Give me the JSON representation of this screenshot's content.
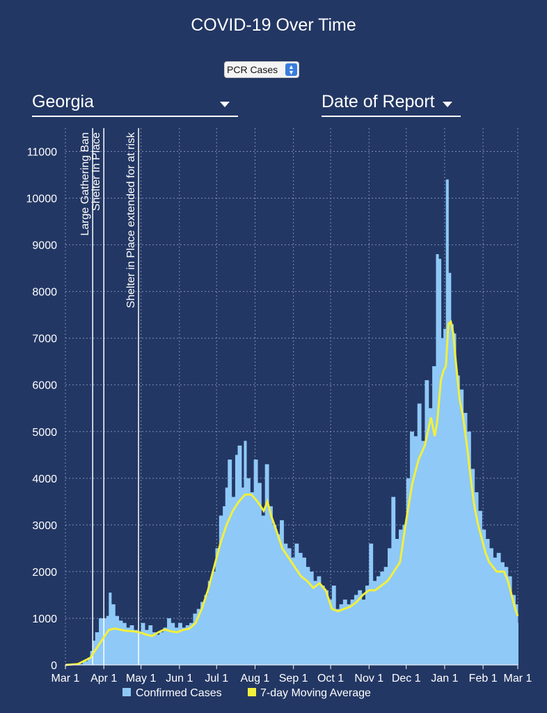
{
  "title": "COVID-19 Over Time",
  "metric_select": {
    "value": "PCR Cases"
  },
  "state_dropdown": {
    "value": "Georgia"
  },
  "date_dropdown": {
    "value": "Date of Report"
  },
  "colors": {
    "background": "#233764",
    "bars": "#8fc9f7",
    "moving_average": "#f2f03c",
    "annotation_line": "#ffffff"
  },
  "icons": {
    "metric_select": "up-down-arrows-icon",
    "dropdown": "caret-down-icon"
  },
  "chart_data": {
    "type": "bar",
    "title": "COVID-19 Over Time",
    "xlabel": "",
    "ylabel": "",
    "ylim": [
      0,
      11500
    ],
    "yticks": [
      0,
      1000,
      2000,
      3000,
      4000,
      5000,
      6000,
      7000,
      8000,
      9000,
      10000,
      11000
    ],
    "grid": true,
    "legend_position": "bottom",
    "x_ticks": [
      {
        "label": "Mar 1",
        "day": 0
      },
      {
        "label": "Apr 1",
        "day": 31
      },
      {
        "label": "May 1",
        "day": 61
      },
      {
        "label": "Jun 1",
        "day": 92
      },
      {
        "label": "Jul 1",
        "day": 122
      },
      {
        "label": "Aug 1",
        "day": 153
      },
      {
        "label": "Sep 1",
        "day": 184
      },
      {
        "label": "Oct 1",
        "day": 214
      },
      {
        "label": "Nov 1",
        "day": 245
      },
      {
        "label": "Dec 1",
        "day": 275
      },
      {
        "label": "Jan 1",
        "day": 306
      },
      {
        "label": "Feb 1",
        "day": 337
      },
      {
        "label": "Mar 1",
        "day": 365
      }
    ],
    "annotations": [
      {
        "label": "Large Gathering Ban",
        "day": 22
      },
      {
        "label": "Shelter In Place",
        "day": 31
      },
      {
        "label": "Shelter in Place extended for at risk",
        "day": 59
      }
    ],
    "series": [
      {
        "name": "Confirmed Cases",
        "type": "bar",
        "points": [
          [
            2,
            5
          ],
          [
            8,
            20
          ],
          [
            14,
            80
          ],
          [
            18,
            160
          ],
          [
            20,
            300
          ],
          [
            22,
            520
          ],
          [
            24,
            700
          ],
          [
            27,
            1000
          ],
          [
            30,
            1000
          ],
          [
            33,
            1050
          ],
          [
            35,
            1550
          ],
          [
            37,
            1300
          ],
          [
            40,
            1050
          ],
          [
            43,
            950
          ],
          [
            46,
            900
          ],
          [
            49,
            800
          ],
          [
            52,
            850
          ],
          [
            55,
            750
          ],
          [
            58,
            700
          ],
          [
            61,
            900
          ],
          [
            64,
            750
          ],
          [
            67,
            850
          ],
          [
            70,
            700
          ],
          [
            73,
            650
          ],
          [
            76,
            700
          ],
          [
            79,
            800
          ],
          [
            82,
            1000
          ],
          [
            85,
            900
          ],
          [
            88,
            800
          ],
          [
            91,
            900
          ],
          [
            94,
            800
          ],
          [
            97,
            850
          ],
          [
            100,
            900
          ],
          [
            103,
            1100
          ],
          [
            106,
            1200
          ],
          [
            109,
            1350
          ],
          [
            112,
            1500
          ],
          [
            115,
            1800
          ],
          [
            118,
            2000
          ],
          [
            121,
            2500
          ],
          [
            124,
            3200
          ],
          [
            127,
            3400
          ],
          [
            129,
            3800
          ],
          [
            131,
            4400
          ],
          [
            134,
            3600
          ],
          [
            137,
            4500
          ],
          [
            139,
            4700
          ],
          [
            142,
            3800
          ],
          [
            144,
            4800
          ],
          [
            146,
            4000
          ],
          [
            149,
            3700
          ],
          [
            152,
            4400
          ],
          [
            155,
            3900
          ],
          [
            158,
            3200
          ],
          [
            161,
            4300
          ],
          [
            164,
            3400
          ],
          [
            167,
            3000
          ],
          [
            170,
            2800
          ],
          [
            173,
            3100
          ],
          [
            176,
            2600
          ],
          [
            179,
            2500
          ],
          [
            182,
            2300
          ],
          [
            185,
            2600
          ],
          [
            188,
            2400
          ],
          [
            191,
            2300
          ],
          [
            194,
            2100
          ],
          [
            197,
            2000
          ],
          [
            200,
            1800
          ],
          [
            203,
            1900
          ],
          [
            206,
            1700
          ],
          [
            209,
            1600
          ],
          [
            212,
            1400
          ],
          [
            215,
            1700
          ],
          [
            218,
            1200
          ],
          [
            221,
            1300
          ],
          [
            224,
            1400
          ],
          [
            227,
            1300
          ],
          [
            230,
            1400
          ],
          [
            233,
            1500
          ],
          [
            236,
            1600
          ],
          [
            239,
            1400
          ],
          [
            242,
            1700
          ],
          [
            245,
            2600
          ],
          [
            248,
            1800
          ],
          [
            251,
            1900
          ],
          [
            254,
            2000
          ],
          [
            257,
            2100
          ],
          [
            260,
            2500
          ],
          [
            263,
            3600
          ],
          [
            266,
            2700
          ],
          [
            269,
            2900
          ],
          [
            272,
            3000
          ],
          [
            275,
            4000
          ],
          [
            278,
            5000
          ],
          [
            281,
            4900
          ],
          [
            284,
            5600
          ],
          [
            287,
            4800
          ],
          [
            290,
            6100
          ],
          [
            293,
            5500
          ],
          [
            296,
            6400
          ],
          [
            299,
            8800
          ],
          [
            301,
            8700
          ],
          [
            303,
            7000
          ],
          [
            305,
            7200
          ],
          [
            307,
            10400
          ],
          [
            309,
            8400
          ],
          [
            311,
            7300
          ],
          [
            313,
            7100
          ],
          [
            315,
            6200
          ],
          [
            318,
            5900
          ],
          [
            321,
            5400
          ],
          [
            324,
            5000
          ],
          [
            327,
            4200
          ],
          [
            330,
            3700
          ],
          [
            333,
            3300
          ],
          [
            336,
            2900
          ],
          [
            339,
            2700
          ],
          [
            342,
            2500
          ],
          [
            345,
            2300
          ],
          [
            348,
            2400
          ],
          [
            351,
            2200
          ],
          [
            354,
            2100
          ],
          [
            357,
            1900
          ],
          [
            360,
            1500
          ],
          [
            363,
            1300
          ],
          [
            365,
            900
          ]
        ]
      },
      {
        "name": "7-day Moving Average",
        "type": "line",
        "points": [
          [
            0,
            0
          ],
          [
            10,
            20
          ],
          [
            20,
            150
          ],
          [
            25,
            350
          ],
          [
            30,
            550
          ],
          [
            35,
            750
          ],
          [
            40,
            780
          ],
          [
            45,
            750
          ],
          [
            50,
            730
          ],
          [
            55,
            720
          ],
          [
            60,
            700
          ],
          [
            65,
            650
          ],
          [
            70,
            620
          ],
          [
            75,
            700
          ],
          [
            80,
            760
          ],
          [
            85,
            720
          ],
          [
            90,
            700
          ],
          [
            95,
            750
          ],
          [
            100,
            780
          ],
          [
            105,
            900
          ],
          [
            110,
            1200
          ],
          [
            115,
            1600
          ],
          [
            120,
            2100
          ],
          [
            125,
            2600
          ],
          [
            130,
            3000
          ],
          [
            135,
            3300
          ],
          [
            140,
            3500
          ],
          [
            145,
            3650
          ],
          [
            150,
            3650
          ],
          [
            155,
            3500
          ],
          [
            160,
            3300
          ],
          [
            163,
            3500
          ],
          [
            166,
            3200
          ],
          [
            170,
            2900
          ],
          [
            175,
            2500
          ],
          [
            180,
            2300
          ],
          [
            185,
            2100
          ],
          [
            190,
            1900
          ],
          [
            195,
            1800
          ],
          [
            200,
            1650
          ],
          [
            205,
            1750
          ],
          [
            210,
            1600
          ],
          [
            215,
            1200
          ],
          [
            220,
            1150
          ],
          [
            225,
            1200
          ],
          [
            230,
            1250
          ],
          [
            235,
            1350
          ],
          [
            240,
            1500
          ],
          [
            245,
            1600
          ],
          [
            250,
            1600
          ],
          [
            255,
            1700
          ],
          [
            260,
            1800
          ],
          [
            265,
            2000
          ],
          [
            270,
            2200
          ],
          [
            275,
            3100
          ],
          [
            280,
            3900
          ],
          [
            285,
            4400
          ],
          [
            290,
            4700
          ],
          [
            295,
            5300
          ],
          [
            298,
            4900
          ],
          [
            300,
            5200
          ],
          [
            303,
            6100
          ],
          [
            305,
            6300
          ],
          [
            307,
            6400
          ],
          [
            309,
            7300
          ],
          [
            311,
            7350
          ],
          [
            313,
            7100
          ],
          [
            315,
            6500
          ],
          [
            318,
            5700
          ],
          [
            321,
            5300
          ],
          [
            324,
            4700
          ],
          [
            327,
            4000
          ],
          [
            330,
            3400
          ],
          [
            333,
            3000
          ],
          [
            336,
            2700
          ],
          [
            339,
            2400
          ],
          [
            342,
            2200
          ],
          [
            345,
            2100
          ],
          [
            348,
            2000
          ],
          [
            351,
            2000
          ],
          [
            354,
            2000
          ],
          [
            357,
            1800
          ],
          [
            360,
            1500
          ],
          [
            363,
            1200
          ],
          [
            365,
            1050
          ]
        ]
      }
    ]
  }
}
